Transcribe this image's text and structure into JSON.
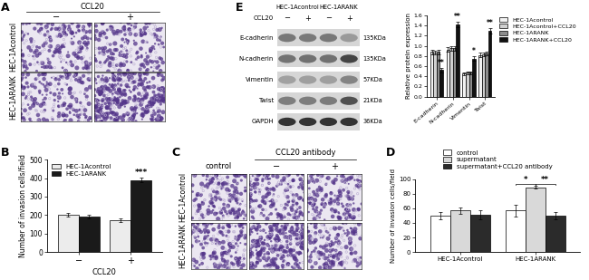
{
  "chart_data": [
    {
      "type": "bar",
      "panel": "B",
      "categories": [
        "−",
        "+"
      ],
      "x_label": "CCL20",
      "y_label": "Number of invasion cells/field",
      "series": [
        {
          "name": "HEC-1Acontrol",
          "color": "#ececec",
          "values": [
            200,
            172
          ],
          "errors": [
            10,
            8
          ]
        },
        {
          "name": "HEC-1ARANK",
          "color": "#1a1a1a",
          "values": [
            192,
            390
          ],
          "errors": [
            8,
            12
          ]
        }
      ],
      "ylim": [
        0,
        500
      ],
      "yticks": [
        0,
        100,
        200,
        300,
        400,
        500
      ],
      "legend": "upper left",
      "annotations": [
        {
          "text": "***",
          "category": 1,
          "series": 1
        }
      ]
    },
    {
      "type": "bar",
      "panel": "D",
      "categories": [
        "HEC-1Acontrol",
        "HEC-1ARANK"
      ],
      "y_label": "Number of invasion cells/field",
      "series": [
        {
          "name": "control",
          "color": "#ffffff",
          "values": [
            50,
            57
          ],
          "errors": [
            5,
            8
          ]
        },
        {
          "name": "supermatant",
          "color": "#d9d9d9",
          "values": [
            57,
            89
          ],
          "errors": [
            4,
            2
          ]
        },
        {
          "name": "supermatant+CCL20 antibody",
          "color": "#2b2b2b",
          "values": [
            51,
            50
          ],
          "errors": [
            6,
            5
          ]
        }
      ],
      "ylim": [
        0,
        100
      ],
      "yticks": [
        0,
        20,
        40,
        60,
        80,
        100
      ],
      "legend": "top",
      "annotations": [
        {
          "text": "*",
          "group": 1,
          "from": 0,
          "to": 1
        },
        {
          "text": "**",
          "group": 1,
          "from": 1,
          "to": 2
        }
      ]
    },
    {
      "type": "bar",
      "categories": [
        "E-cadherin",
        "N-cadherin",
        "Vimentin",
        "Twist"
      ],
      "y_label": "Relative protein expression",
      "series": [
        {
          "name": "HEC-1Acontrol",
          "color": "#f2f2f2",
          "values": [
            0.88,
            0.93,
            0.45,
            0.82
          ],
          "errors": [
            0.04,
            0.05,
            0.03,
            0.04
          ]
        },
        {
          "name": "HEC-1Acontrol+CCL20",
          "color": "#d0d0d0",
          "values": [
            0.87,
            0.95,
            0.47,
            0.83
          ],
          "errors": [
            0.04,
            0.05,
            0.03,
            0.04
          ]
        },
        {
          "name": "HEC-1ARANK",
          "color": "#8c8c8c",
          "values": [
            0.88,
            0.95,
            0.47,
            0.85
          ],
          "errors": [
            0.04,
            0.05,
            0.03,
            0.04
          ]
        },
        {
          "name": "HEC-1ARANK+CCL20",
          "color": "#111111",
          "values": [
            0.52,
            1.42,
            0.75,
            1.3
          ],
          "errors": [
            0.04,
            0.05,
            0.04,
            0.05
          ]
        }
      ],
      "ylim": [
        0.0,
        1.6
      ],
      "yticks": [
        0.0,
        0.2,
        0.4,
        0.6,
        0.8,
        1.0,
        1.2,
        1.4,
        1.6
      ],
      "legend": "right",
      "annotations": [
        {
          "text": "**",
          "category": 0,
          "series": 3
        },
        {
          "text": "**",
          "category": 1,
          "series": 3
        },
        {
          "text": "*",
          "category": 2,
          "series": 3
        },
        {
          "text": "**",
          "category": 3,
          "series": 3
        }
      ]
    }
  ],
  "panel_A": {
    "panel": "A",
    "header": "CCL20",
    "columns": [
      "−",
      "+"
    ],
    "rows": [
      "HEC-1Acontrol",
      "HEC-1ARANK"
    ]
  },
  "panel_C": {
    "panel": "C",
    "columns": [
      "control",
      "−",
      "+"
    ],
    "column_group": "CCL20 antibody",
    "rows": [
      "HEC-1Acontrol",
      "HEC-1ARANK"
    ]
  },
  "panel_E_blot": {
    "panel": "E",
    "treatment": "CCL20",
    "groups": [
      "HEC-1Acontrol",
      "HEC-1ARANK"
    ],
    "lanes": [
      "−",
      "+",
      "−",
      "+"
    ],
    "bands": [
      {
        "name": "E-cadherin",
        "size": "135KDa"
      },
      {
        "name": "N-cadherin",
        "size": "135KDa"
      },
      {
        "name": "Vimentin",
        "size": "57KDa"
      },
      {
        "name": "Twist",
        "size": "21KDa"
      },
      {
        "name": "GAPDH",
        "size": "36KDa"
      }
    ]
  }
}
